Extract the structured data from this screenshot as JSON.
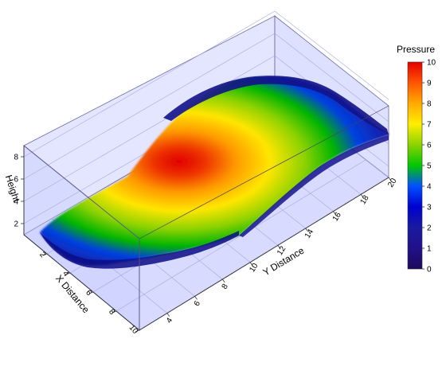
{
  "chart_data": {
    "type": "surface",
    "xlabel": "X Distance",
    "ylabel": "Y Distance",
    "zlabel": "Height",
    "colorbar_title": "Pressure",
    "x_range": [
      0,
      10
    ],
    "y_range": [
      2,
      20
    ],
    "z_range": [
      1,
      9
    ],
    "x_ticks": [
      "2",
      "4",
      "6",
      "8",
      "10"
    ],
    "y_ticks": [
      "4",
      "6",
      "8",
      "10",
      "12",
      "14",
      "16",
      "18",
      "20"
    ],
    "z_ticks": [
      "2",
      "4",
      "6",
      "8"
    ],
    "colorbar_range": [
      0,
      10
    ],
    "colorbar_ticks": [
      "0",
      "1",
      "2",
      "3",
      "4",
      "5",
      "6",
      "7",
      "8",
      "9",
      "10"
    ],
    "colormap": [
      "#2a0a6e",
      "#1a1a9c",
      "#0000cc",
      "#0040ff",
      "#00a0c8",
      "#00c800",
      "#8cd200",
      "#ffee00",
      "#ffaa00",
      "#ff5500",
      "#dd0000"
    ],
    "pressure_peak": 10,
    "peak_location": {
      "x": 5,
      "y": 8
    },
    "grid": "on",
    "box_color": "#c8c8ff"
  }
}
